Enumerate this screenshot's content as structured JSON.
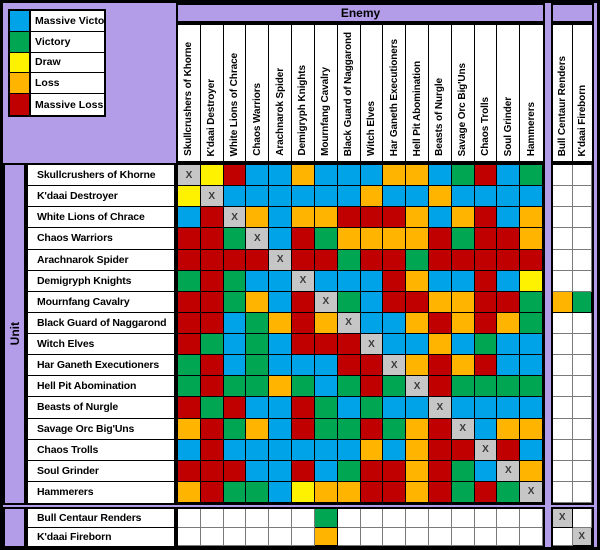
{
  "labels": {
    "enemy": "Enemy",
    "unit": "Unit"
  },
  "legend": {
    "items": [
      {
        "label": "Massive Victory",
        "code": "B"
      },
      {
        "label": "Victory",
        "code": "G"
      },
      {
        "label": "Draw",
        "code": "Y"
      },
      {
        "label": "Loss",
        "code": "O"
      },
      {
        "label": "Massive Loss",
        "code": "R"
      }
    ]
  },
  "colors": {
    "B": "#00A2E8",
    "G": "#00A651",
    "Y": "#FFF200",
    "O": "#FFB400",
    "R": "#C00000",
    "X": "#C6C6C6",
    "W": "#FFFFFF",
    "background": "#B39DE8"
  },
  "self_marker": "X",
  "chart_data": {
    "type": "heatmap",
    "xlabel": "Enemy",
    "ylabel": "Unit",
    "legend": [
      "Massive Victory",
      "Victory",
      "Draw",
      "Loss",
      "Massive Loss"
    ],
    "code_meaning": {
      "B": "Massive Victory",
      "G": "Victory",
      "Y": "Draw",
      "O": "Loss",
      "R": "Massive Loss",
      "X": "mirror match (self)",
      "W": "no data"
    },
    "columns": [
      "Skullcrushers of Khorne",
      "K'daai Destroyer",
      "White Lions of Chrace",
      "Chaos Warriors",
      "Arachnarok Spider",
      "Demigryph Knights",
      "Mournfang Cavalry",
      "Black Guard of Naggarond",
      "Witch Elves",
      "Har Ganeth Executioners",
      "Hell Pit Abomination",
      "Beasts of Nurgle",
      "Savage Orc Big'Uns",
      "Chaos Trolls",
      "Soul Grinder",
      "Hammerers",
      "Bull Centaur Renders",
      "K'daai Fireborn"
    ],
    "rows": [
      {
        "unit": "Skullcrushers of Khorne",
        "results": [
          "X",
          "Y",
          "R",
          "B",
          "B",
          "O",
          "B",
          "B",
          "B",
          "O",
          "O",
          "B",
          "G",
          "R",
          "B",
          "G",
          "W",
          "W"
        ]
      },
      {
        "unit": "K'daai Destroyer",
        "results": [
          "Y",
          "X",
          "B",
          "B",
          "B",
          "B",
          "B",
          "B",
          "O",
          "B",
          "B",
          "O",
          "B",
          "B",
          "B",
          "B",
          "W",
          "W"
        ]
      },
      {
        "unit": "White Lions of Chrace",
        "results": [
          "B",
          "R",
          "X",
          "O",
          "B",
          "O",
          "O",
          "R",
          "R",
          "R",
          "O",
          "B",
          "O",
          "R",
          "B",
          "O",
          "W",
          "W"
        ]
      },
      {
        "unit": "Chaos Warriors",
        "results": [
          "R",
          "R",
          "G",
          "X",
          "B",
          "R",
          "G",
          "O",
          "O",
          "O",
          "O",
          "R",
          "G",
          "R",
          "R",
          "O",
          "W",
          "W"
        ]
      },
      {
        "unit": "Arachnarok Spider",
        "results": [
          "R",
          "R",
          "R",
          "R",
          "X",
          "R",
          "R",
          "G",
          "R",
          "R",
          "G",
          "R",
          "R",
          "R",
          "R",
          "R",
          "W",
          "W"
        ]
      },
      {
        "unit": "Demigryph Knights",
        "results": [
          "G",
          "R",
          "G",
          "B",
          "B",
          "X",
          "B",
          "B",
          "B",
          "R",
          "O",
          "B",
          "B",
          "R",
          "B",
          "Y",
          "W",
          "W"
        ]
      },
      {
        "unit": "Mournfang Cavalry",
        "results": [
          "R",
          "R",
          "G",
          "O",
          "B",
          "R",
          "X",
          "G",
          "B",
          "R",
          "R",
          "O",
          "O",
          "R",
          "R",
          "G",
          "O",
          "G"
        ]
      },
      {
        "unit": "Black Guard of Naggarond",
        "results": [
          "R",
          "R",
          "B",
          "G",
          "O",
          "R",
          "O",
          "X",
          "B",
          "B",
          "O",
          "R",
          "O",
          "R",
          "O",
          "G",
          "W",
          "W"
        ]
      },
      {
        "unit": "Witch Elves",
        "results": [
          "R",
          "G",
          "B",
          "G",
          "B",
          "R",
          "R",
          "R",
          "X",
          "B",
          "B",
          "O",
          "B",
          "G",
          "B",
          "B",
          "W",
          "W"
        ]
      },
      {
        "unit": "Har Ganeth Executioners",
        "results": [
          "G",
          "R",
          "B",
          "G",
          "B",
          "B",
          "B",
          "R",
          "R",
          "X",
          "O",
          "R",
          "O",
          "R",
          "B",
          "B",
          "W",
          "W"
        ]
      },
      {
        "unit": "Hell Pit Abomination",
        "results": [
          "G",
          "R",
          "G",
          "G",
          "O",
          "G",
          "B",
          "G",
          "R",
          "G",
          "X",
          "R",
          "G",
          "G",
          "G",
          "G",
          "W",
          "W"
        ]
      },
      {
        "unit": "Beasts of Nurgle",
        "results": [
          "R",
          "G",
          "R",
          "B",
          "B",
          "R",
          "G",
          "B",
          "G",
          "B",
          "B",
          "X",
          "B",
          "B",
          "B",
          "B",
          "W",
          "W"
        ]
      },
      {
        "unit": "Savage Orc Big'Uns",
        "results": [
          "O",
          "R",
          "G",
          "O",
          "B",
          "R",
          "G",
          "G",
          "R",
          "G",
          "O",
          "R",
          "X",
          "B",
          "O",
          "O",
          "W",
          "W"
        ]
      },
      {
        "unit": "Chaos Trolls",
        "results": [
          "B",
          "R",
          "B",
          "B",
          "B",
          "B",
          "B",
          "B",
          "O",
          "B",
          "O",
          "R",
          "R",
          "X",
          "R",
          "B",
          "W",
          "W"
        ]
      },
      {
        "unit": "Soul Grinder",
        "results": [
          "R",
          "R",
          "R",
          "B",
          "B",
          "R",
          "B",
          "G",
          "R",
          "R",
          "O",
          "R",
          "G",
          "B",
          "X",
          "O",
          "W",
          "W"
        ]
      },
      {
        "unit": "Hammerers",
        "results": [
          "O",
          "R",
          "G",
          "G",
          "B",
          "Y",
          "O",
          "O",
          "R",
          "R",
          "O",
          "R",
          "G",
          "R",
          "G",
          "X",
          "W",
          "W"
        ]
      },
      {
        "unit": "Bull Centaur Renders",
        "results": [
          "W",
          "W",
          "W",
          "W",
          "W",
          "W",
          "G",
          "W",
          "W",
          "W",
          "W",
          "W",
          "W",
          "W",
          "W",
          "W",
          "X",
          "W"
        ]
      },
      {
        "unit": "K'daai Fireborn",
        "results": [
          "W",
          "W",
          "W",
          "W",
          "W",
          "W",
          "O",
          "W",
          "W",
          "W",
          "W",
          "W",
          "W",
          "W",
          "W",
          "W",
          "W",
          "X"
        ]
      }
    ]
  }
}
